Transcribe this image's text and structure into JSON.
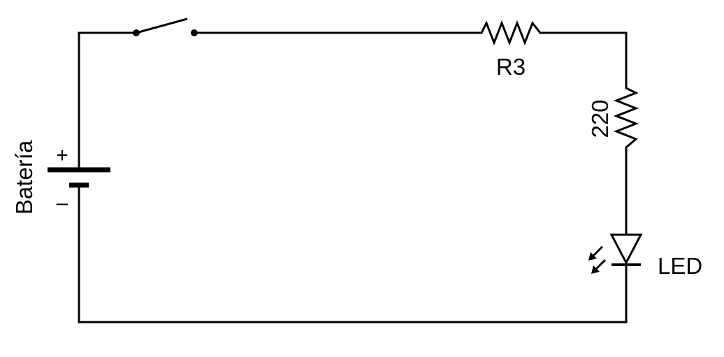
{
  "labels": {
    "battery": "Batería",
    "battery_plus": "+",
    "battery_minus": "–",
    "resistor_r3": "R3",
    "resistor_220": "220",
    "led": "LED"
  },
  "colors": {
    "wire": "#000000",
    "background": "#ffffff"
  },
  "components": [
    "battery",
    "switch",
    "resistor",
    "resistor",
    "led"
  ]
}
